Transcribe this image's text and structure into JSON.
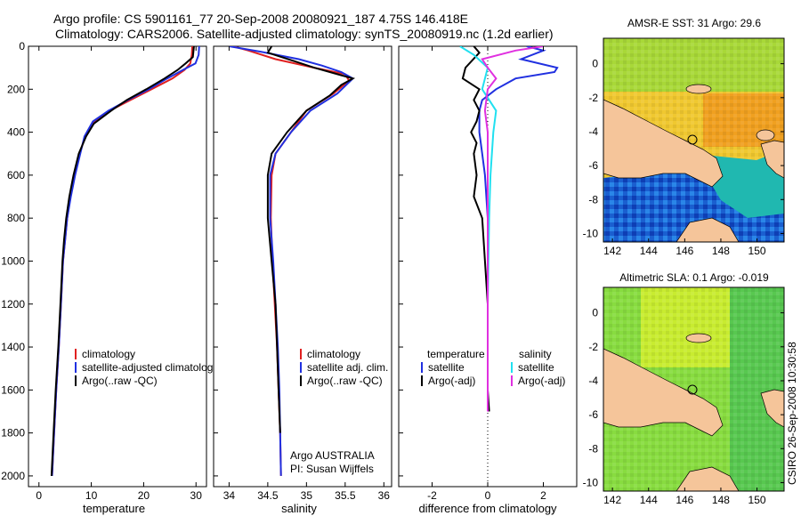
{
  "header": {
    "title_line1": "Argo profile: CS 5901161_77 20-Sep-2008 20080921_187 4.75S 146.418E",
    "title_line2": "Climatology: CARS2006. Satellite-adjusted climatology: synTS_20080919.nc (1.2d earlier)"
  },
  "colors": {
    "climatology": "#e02020",
    "satellite": "#2030e0",
    "argo": "#000000",
    "sal_satellite": "#20e0f0",
    "sal_argo": "#e030e0",
    "land": "#f5c59a"
  },
  "chart_data": [
    {
      "type": "line",
      "id": "temperature",
      "xlabel": "temperature",
      "xlim": [
        -2,
        32
      ],
      "ylim": [
        2050,
        0
      ],
      "xticks": [
        0,
        10,
        20,
        30
      ],
      "yticks": [
        0,
        200,
        400,
        600,
        800,
        1000,
        1200,
        1400,
        1600,
        1800,
        2000
      ],
      "legend": {
        "position": "bottom-right",
        "entries": [
          "climatology",
          "satellite-adjusted climatology",
          "Argo(..raw -QC)"
        ]
      },
      "series": [
        {
          "name": "climatology",
          "color": "#e02020",
          "points": [
            [
              29.3,
              0
            ],
            [
              29.2,
              40
            ],
            [
              28.9,
              80
            ],
            [
              27.8,
              110
            ],
            [
              25.5,
              150
            ],
            [
              21.5,
              200
            ],
            [
              17.5,
              250
            ],
            [
              13.5,
              300
            ],
            [
              10.5,
              350
            ],
            [
              8.8,
              420
            ],
            [
              7.8,
              500
            ],
            [
              6.8,
              600
            ],
            [
              6.0,
              700
            ],
            [
              5.4,
              800
            ],
            [
              5.0,
              900
            ],
            [
              4.6,
              1000
            ],
            [
              4.2,
              1200
            ],
            [
              3.8,
              1400
            ],
            [
              3.3,
              1600
            ],
            [
              2.9,
              1800
            ],
            [
              2.5,
              2000
            ]
          ]
        },
        {
          "name": "satellite-adjusted climatology",
          "color": "#2030e0",
          "points": [
            [
              30.6,
              0
            ],
            [
              30.5,
              40
            ],
            [
              29.9,
              80
            ],
            [
              27.5,
              110
            ],
            [
              24.5,
              150
            ],
            [
              21.0,
              200
            ],
            [
              17.0,
              250
            ],
            [
              13.3,
              300
            ],
            [
              10.3,
              350
            ],
            [
              8.7,
              420
            ],
            [
              7.9,
              500
            ],
            [
              6.9,
              600
            ],
            [
              6.1,
              700
            ],
            [
              5.4,
              800
            ],
            [
              5.0,
              900
            ],
            [
              4.6,
              1000
            ],
            [
              4.2,
              1200
            ],
            [
              3.8,
              1400
            ],
            [
              3.3,
              1600
            ],
            [
              2.9,
              1800
            ],
            [
              2.5,
              2000
            ]
          ]
        },
        {
          "name": "Argo(..raw -QC)",
          "color": "#000000",
          "points": [
            [
              29.6,
              0
            ],
            [
              29.4,
              50
            ],
            [
              28.0,
              80
            ],
            [
              26.5,
              110
            ],
            [
              24.0,
              150
            ],
            [
              20.5,
              200
            ],
            [
              16.8,
              250
            ],
            [
              13.8,
              300
            ],
            [
              10.5,
              360
            ],
            [
              9.0,
              420
            ],
            [
              7.6,
              500
            ],
            [
              6.6,
              600
            ],
            [
              5.8,
              700
            ],
            [
              5.2,
              800
            ],
            [
              4.8,
              900
            ],
            [
              4.5,
              1000
            ],
            [
              4.1,
              1200
            ],
            [
              3.7,
              1400
            ],
            [
              3.2,
              1600
            ],
            [
              2.8,
              1800
            ],
            [
              2.4,
              2000
            ]
          ]
        }
      ]
    },
    {
      "type": "line",
      "id": "salinity",
      "xlabel": "salinity",
      "xlim": [
        33.8,
        36.1
      ],
      "ylim": [
        2050,
        0
      ],
      "xticks": [
        34,
        34.5,
        35,
        35.5,
        36
      ],
      "xticklabels": [
        "34",
        "34.5",
        "35",
        "35.5",
        "36"
      ],
      "legend": {
        "position": "bottom-right",
        "entries": [
          "climatology",
          "satellite adj. clim.",
          "Argo(..raw -QC)"
        ]
      },
      "annotations": [
        "Argo AUSTRALIA",
        "PI: Susan Wijffels"
      ],
      "series": [
        {
          "name": "climatology",
          "color": "#e02020",
          "points": [
            [
              34.05,
              0
            ],
            [
              34.25,
              20
            ],
            [
              34.6,
              60
            ],
            [
              35.1,
              100
            ],
            [
              35.5,
              130
            ],
            [
              35.55,
              160
            ],
            [
              35.35,
              220
            ],
            [
              35.0,
              300
            ],
            [
              34.8,
              400
            ],
            [
              34.6,
              500
            ],
            [
              34.55,
              600
            ],
            [
              34.54,
              800
            ],
            [
              34.56,
              1000
            ],
            [
              34.59,
              1200
            ],
            [
              34.62,
              1400
            ],
            [
              34.64,
              1600
            ],
            [
              34.66,
              1800
            ],
            [
              34.67,
              2000
            ]
          ]
        },
        {
          "name": "satellite adj. clim.",
          "color": "#2030e0",
          "points": [
            [
              34.0,
              0
            ],
            [
              34.4,
              25
            ],
            [
              34.9,
              60
            ],
            [
              35.2,
              90
            ],
            [
              35.45,
              120
            ],
            [
              35.6,
              150
            ],
            [
              35.4,
              220
            ],
            [
              35.05,
              300
            ],
            [
              34.8,
              400
            ],
            [
              34.6,
              500
            ],
            [
              34.53,
              600
            ],
            [
              34.53,
              800
            ],
            [
              34.57,
              1000
            ],
            [
              34.6,
              1200
            ],
            [
              34.63,
              1400
            ],
            [
              34.65,
              1600
            ],
            [
              34.66,
              1800
            ],
            [
              34.67,
              2000
            ]
          ]
        },
        {
          "name": "Argo(..raw -QC)",
          "color": "#000000",
          "points": [
            [
              34.55,
              0
            ],
            [
              34.5,
              30
            ],
            [
              34.85,
              70
            ],
            [
              35.1,
              100
            ],
            [
              35.4,
              130
            ],
            [
              35.6,
              150
            ],
            [
              35.45,
              180
            ],
            [
              35.3,
              230
            ],
            [
              35.0,
              300
            ],
            [
              34.75,
              400
            ],
            [
              34.55,
              500
            ],
            [
              34.5,
              600
            ],
            [
              34.5,
              800
            ],
            [
              34.55,
              1000
            ],
            [
              34.6,
              1200
            ],
            [
              34.62,
              1400
            ],
            [
              34.64,
              1600
            ],
            [
              34.66,
              1800
            ]
          ]
        }
      ]
    },
    {
      "type": "line",
      "id": "difference",
      "xlabel": "difference from climatology",
      "xlim": [
        -3.2,
        3.2
      ],
      "ylim": [
        2050,
        0
      ],
      "xticks": [
        -2,
        0,
        2
      ],
      "legend": {
        "position": "bottom",
        "headers": [
          "temperature",
          "salinity"
        ],
        "entries": [
          "satellite",
          "Argo(-adj)",
          "satellite",
          "Argo(-adj)"
        ]
      },
      "series": [
        {
          "name": "temperature satellite",
          "color": "#2030e0",
          "points": [
            [
              1.4,
              0
            ],
            [
              2.0,
              20
            ],
            [
              1.2,
              60
            ],
            [
              2.5,
              100
            ],
            [
              2.4,
              120
            ],
            [
              1.0,
              150
            ],
            [
              0.3,
              200
            ],
            [
              -0.2,
              250
            ],
            [
              -0.3,
              300
            ],
            [
              -0.3,
              400
            ],
            [
              -0.2,
              500
            ],
            [
              -0.1,
              600
            ],
            [
              0.0,
              800
            ],
            [
              0.0,
              1200
            ],
            [
              0.0,
              1600
            ],
            [
              0.0,
              1700
            ]
          ]
        },
        {
          "name": "temperature Argo(-adj)",
          "color": "#000000",
          "points": [
            [
              -0.5,
              0
            ],
            [
              -0.3,
              30
            ],
            [
              -0.8,
              100
            ],
            [
              -0.9,
              150
            ],
            [
              -0.3,
              200
            ],
            [
              -0.5,
              250
            ],
            [
              -0.3,
              300
            ],
            [
              -0.4,
              350
            ],
            [
              -0.6,
              400
            ],
            [
              -0.4,
              450
            ],
            [
              -0.5,
              500
            ],
            [
              -0.4,
              600
            ],
            [
              -0.5,
              700
            ],
            [
              -0.2,
              800
            ],
            [
              -0.1,
              1000
            ],
            [
              0.0,
              1200
            ],
            [
              0.0,
              1400
            ],
            [
              0.0,
              1600
            ],
            [
              0.05,
              1700
            ]
          ]
        },
        {
          "name": "salinity satellite",
          "color": "#20e0f0",
          "points": [
            [
              -1.0,
              0
            ],
            [
              -0.5,
              40
            ],
            [
              0.0,
              100
            ],
            [
              -0.2,
              200
            ],
            [
              0.3,
              300
            ],
            [
              0.2,
              400
            ],
            [
              0.1,
              600
            ],
            [
              0.05,
              800
            ],
            [
              0.0,
              1200
            ],
            [
              0.0,
              1600
            ],
            [
              0.0,
              1700
            ]
          ]
        },
        {
          "name": "salinity Argo(-adj)",
          "color": "#e030e0",
          "points": [
            [
              2.0,
              0
            ],
            [
              1.0,
              20
            ],
            [
              -0.2,
              60
            ],
            [
              0.0,
              100
            ],
            [
              0.3,
              150
            ],
            [
              0.0,
              200
            ],
            [
              -0.1,
              300
            ],
            [
              0.0,
              400
            ],
            [
              0.0,
              500
            ],
            [
              0.0,
              800
            ],
            [
              0.0,
              1200
            ],
            [
              0.0,
              1700
            ]
          ]
        }
      ]
    },
    {
      "type": "heatmap",
      "id": "sst_map",
      "title": "AMSR-E SST: 31  Argo: 29.6",
      "xlim": [
        141.5,
        151.5
      ],
      "ylim": [
        -10.5,
        1.5
      ],
      "xticks": [
        142,
        144,
        146,
        148,
        150
      ],
      "yticks": [
        0,
        -2,
        -4,
        -6,
        -8,
        -10
      ],
      "profile_location": [
        146.418,
        -4.75
      ]
    },
    {
      "type": "heatmap",
      "id": "sla_map",
      "title": "Altimetric SLA: 0.1  Argo: -0.019",
      "xlim": [
        141.5,
        151.5
      ],
      "ylim": [
        -10.5,
        1.5
      ],
      "xticks": [
        142,
        144,
        146,
        148,
        150
      ],
      "yticks": [
        0,
        -2,
        -4,
        -6,
        -8,
        -10
      ],
      "profile_location": [
        146.418,
        -4.75
      ]
    }
  ],
  "footer": {
    "stamp": "CSIRO 26-Sep-2008 10:30:58"
  }
}
